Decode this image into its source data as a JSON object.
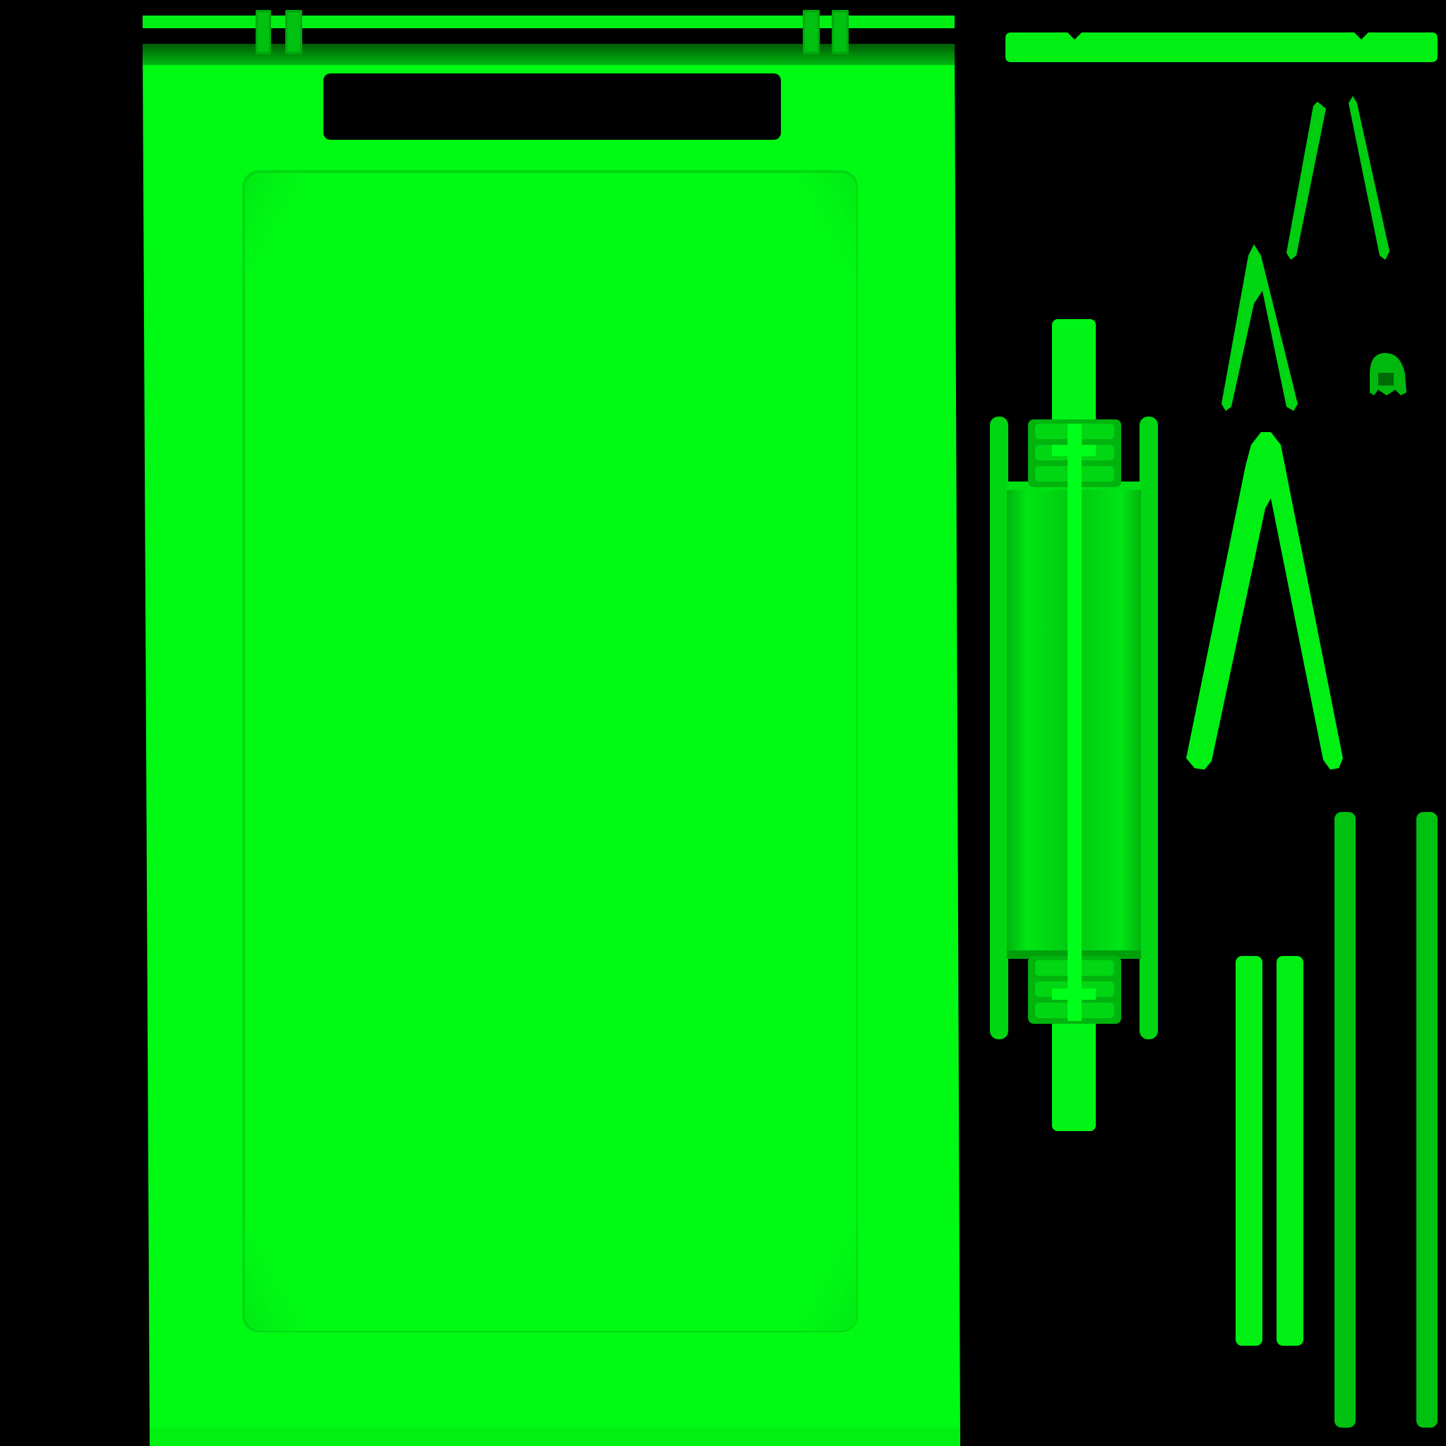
{
  "texture": {
    "background_color": "#000000",
    "colors": {
      "bright_green": "#00FF1A",
      "main_green": "#00FA14",
      "mid_green": "#00D010",
      "dark_green": "#00A20C",
      "deep_green": "#006A06",
      "hole_black": "#000000"
    }
  }
}
